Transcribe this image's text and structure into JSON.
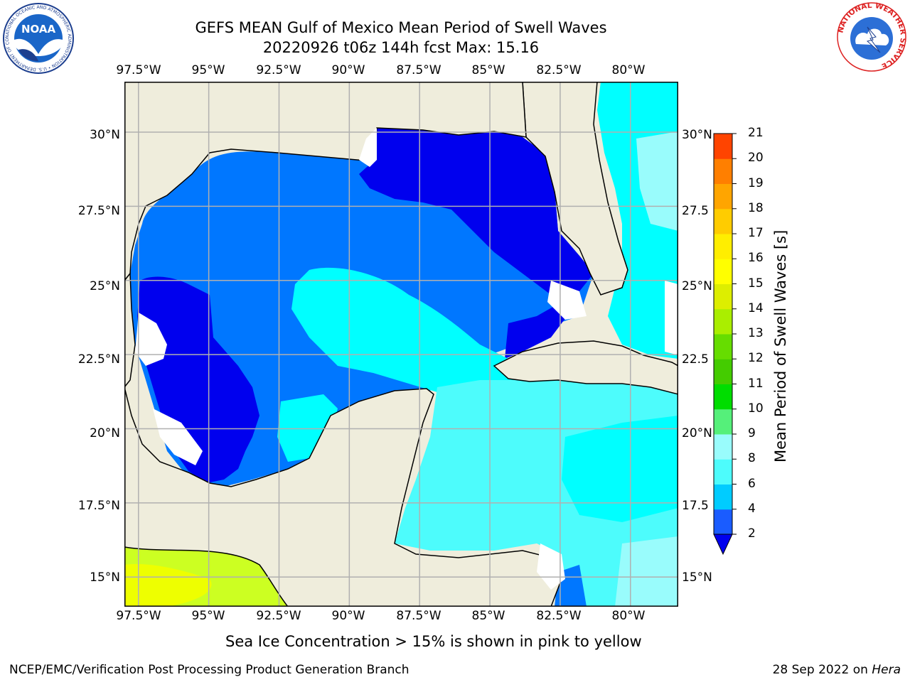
{
  "header": {
    "title_line1": "GEFS MEAN Gulf of Mexico Mean Period of Swell Waves",
    "title_line2": "20220926 t06z 144h fcst   Max: 15.16"
  },
  "logos": {
    "noaa_text": "NOAA",
    "noaa_ring_text": "NATIONAL OCEANIC AND ATMOSPHERIC ADMINISTRATION • U.S. DEPARTMENT OF COMMERCE",
    "nws_ring_text": "NATIONAL WEATHER SERVICE"
  },
  "axes": {
    "lon_labels": [
      "97.5°W",
      "95°W",
      "92.5°W",
      "90°W",
      "87.5°W",
      "85°W",
      "82.5°W",
      "80°W"
    ],
    "lon_values": [
      -97.5,
      -95,
      -92.5,
      -90,
      -87.5,
      -85,
      -82.5,
      -80
    ],
    "lat_labels": [
      "30°N",
      "27.5°N",
      "25°N",
      "22.5°N",
      "20°N",
      "17.5°N",
      "15°N"
    ],
    "lat_labels_right": [
      "30°N",
      "27.5",
      "25°N",
      "22.5",
      "20°N",
      "17.5",
      "15°N"
    ],
    "lat_values": [
      30,
      27.5,
      25,
      22.5,
      20,
      17.5,
      15
    ],
    "lon_range": [
      -98,
      -78.3
    ],
    "lat_range": [
      14,
      31.7
    ],
    "grid": true
  },
  "colorbar": {
    "label": "Mean Period of Swell Waves [s]",
    "ticks": [
      "2",
      "4",
      "6",
      "8",
      "9",
      "10",
      "11",
      "12",
      "13",
      "14",
      "15",
      "16",
      "17",
      "18",
      "19",
      "20",
      "21"
    ],
    "colors": [
      "#1a5cff",
      "#00ccff",
      "#4dfcfc",
      "#99fcfc",
      "#55f07a",
      "#00dd00",
      "#44cc00",
      "#66dd00",
      "#aaee00",
      "#ddee00",
      "#ffff00",
      "#ffee00",
      "#ffcc00",
      "#ffa500",
      "#ff7f00",
      "#ff4400",
      "#ff0000"
    ],
    "under_color": "#0000ee"
  },
  "map_colors": {
    "ocean_deep": "#0000ee",
    "ocean_mid": "#0077ff",
    "ocean_cyan": "#00ffff",
    "ocean_light": "#4dfcfc",
    "ocean_pale": "#99fcfc",
    "land": "#efeddc",
    "yellow": "#eeff00",
    "yellow_green": "#ccff22"
  },
  "notes": {
    "sea_ice": "Sea Ice Concentration > 15% is shown in pink to yellow"
  },
  "footer": {
    "left": "NCEP/EMC/Verification Post Processing Product Generation Branch",
    "right_date": "28 Sep 2022 on ",
    "right_host": "Hera"
  }
}
